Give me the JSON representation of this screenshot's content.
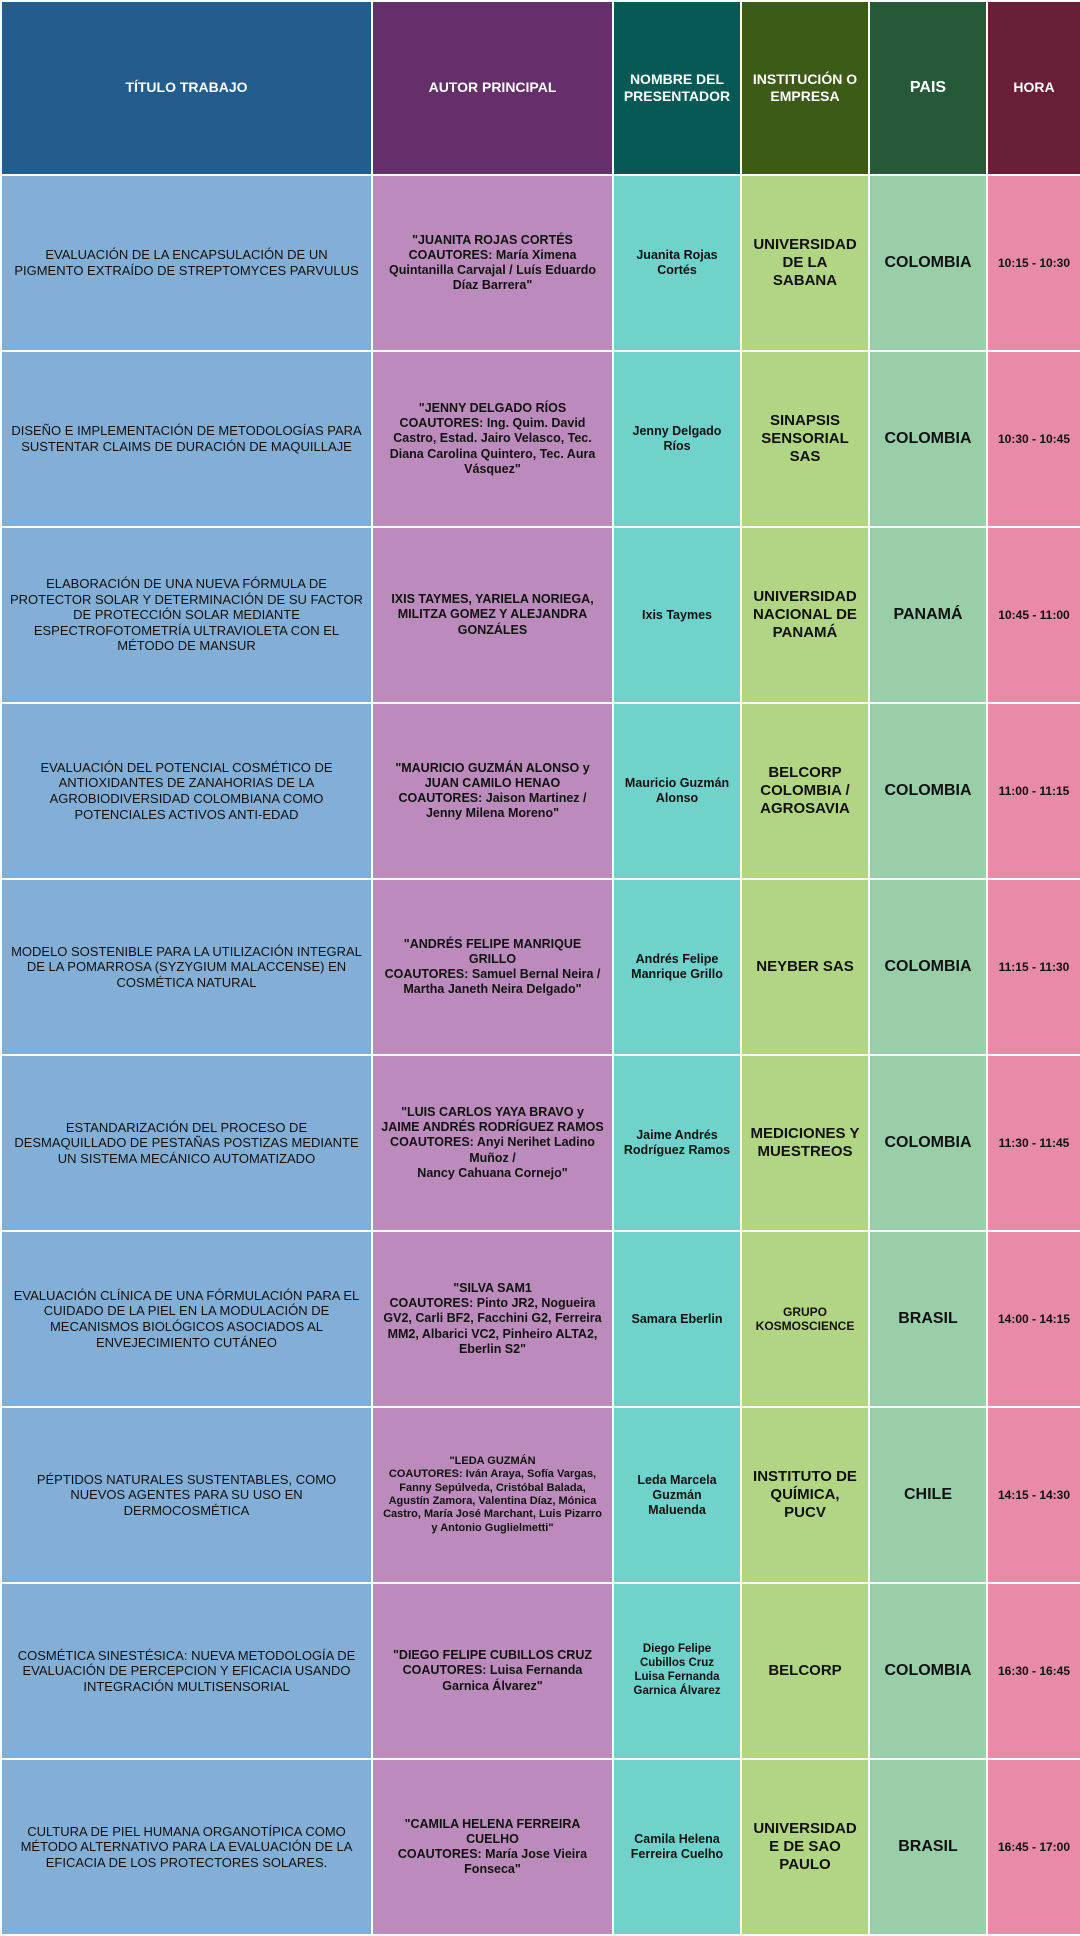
{
  "header": {
    "titulo": "TÍTULO TRABAJO",
    "autor": "AUTOR PRINCIPAL",
    "presentador": "NOMBRE DEL PRESENTADOR",
    "institucion": "INSTITUCIÓN O EMPRESA",
    "pais": "PAIS",
    "hora": "HORA"
  },
  "colors": {
    "header_titulo": "#235c8e",
    "header_autor": "#652f6a",
    "header_presentador": "#065954",
    "header_institucion": "#3d5a16",
    "header_pais": "#255938",
    "header_hora": "#6a1f38",
    "col_titulo": "#83aed6",
    "col_autor": "#bb8cbb",
    "col_presentador": "#6fd2cb",
    "col_institucion": "#b1d582",
    "col_pais": "#98cfa8",
    "col_hora": "#e98aa7"
  },
  "rows": [
    {
      "titulo": "EVALUACIÓN DE LA ENCAPSULACIÓN DE UN PIGMENTO EXTRAÍDO DE STREPTOMYCES PARVULUS",
      "autor": "\"JUANITA ROJAS CORTÉS\nCOAUTORES: María Ximena Quintanilla Carvajal /  Luís Eduardo Díaz Barrera\"",
      "presentador": "Juanita Rojas Cortés",
      "institucion": "UNIVERSIDAD DE LA SABANA",
      "pais": "COLOMBIA",
      "hora": "10:15 - 10:30"
    },
    {
      "titulo": "DISEÑO E IMPLEMENTACIÓN DE METODOLOGÍAS PARA SUSTENTAR CLAIMS DE DURACIÓN DE MAQUILLAJE",
      "autor": "\"JENNY DELGADO RÍOS\nCOAUTORES: Ing. Quim. David Castro, Estad. Jairo Velasco, Tec. Diana Carolina Quintero, Tec. Aura Vásquez\"",
      "presentador": "Jenny Delgado Ríos",
      "institucion": "SINAPSIS SENSORIAL SAS",
      "pais": "COLOMBIA",
      "hora": "10:30 - 10:45"
    },
    {
      "titulo": "ELABORACIÓN DE UNA NUEVA FÓRMULA DE PROTECTOR SOLAR Y DETERMINACIÓN DE SU FACTOR DE PROTECCIÓN SOLAR MEDIANTE ESPECTROFOTOMETRÍA ULTRAVIOLETA CON EL MÉTODO DE MANSUR",
      "autor": "IXIS TAYMES, YARIELA NORIEGA, MILITZA GOMEZ Y ALEJANDRA GONZÁLES",
      "presentador": "Ixis Taymes",
      "institucion": "UNIVERSIDAD NACIONAL DE PANAMÁ",
      "pais": "PANAMÁ",
      "hora": "10:45 - 11:00"
    },
    {
      "titulo": "EVALUACIÓN DEL POTENCIAL COSMÉTICO DE ANTIOXIDANTES DE ZANAHORIAS DE LA AGROBIODIVERSIDAD COLOMBIANA COMO POTENCIALES ACTIVOS ANTI-EDAD",
      "autor": "\"MAURICIO GUZMÁN ALONSO y JUAN CAMILO HENAO\nCOAUTORES: Jaison Martinez / Jenny Milena Moreno\"",
      "presentador": "Mauricio Guzmán Alonso",
      "institucion": "BELCORP COLOMBIA / AGROSAVIA",
      "pais": "COLOMBIA",
      "hora": "11:00 - 11:15"
    },
    {
      "titulo": "MODELO SOSTENIBLE PARA LA UTILIZACIÓN INTEGRAL DE LA POMARROSA (SYZYGIUM MALACCENSE) EN COSMÉTICA NATURAL",
      "autor": "\"ANDRÉS FELIPE MANRIQUE GRILLO\nCOAUTORES: Samuel Bernal Neira / Martha Janeth Neira Delgado\"",
      "presentador": "Andrés Felipe Manrique Grillo",
      "institucion": "NEYBER SAS",
      "pais": "COLOMBIA",
      "hora": "11:15 - 11:30"
    },
    {
      "titulo": "ESTANDARIZACIÓN DEL PROCESO DE DESMAQUILLADO DE PESTAÑAS POSTIZAS MEDIANTE UN SISTEMA MECÁNICO AUTOMATIZADO",
      "autor": "\"LUIS CARLOS YAYA BRAVO y JAIME ANDRÉS RODRÍGUEZ RAMOS\nCOAUTORES: Anyi Nerihet Ladino Muñoz /\nNancy Cahuana Cornejo\"",
      "presentador": "Jaime Andrés Rodríguez Ramos",
      "institucion": "MEDICIONES Y MUESTREOS",
      "pais": "COLOMBIA",
      "hora": "11:30 - 11:45"
    },
    {
      "titulo": "EVALUACIÓN CLÍNICA DE UNA FÓRMULACIÓN PARA EL CUIDADO DE LA PIEL EN LA MODULACIÓN DE MECANISMOS BIOLÓGICOS ASOCIADOS AL ENVEJECIMIENTO CUTÁNEO",
      "autor": "\"SILVA SAM1\nCOAUTORES: Pinto JR2, Nogueira GV2, Carli BF2, Facchini G2, Ferreira MM2, Albarici VC2, Pinheiro ALTA2, Eberlin S2\"",
      "presentador": "Samara Eberlin",
      "institucion": "GRUPO KOSMOSCIENCE",
      "pais": "BRASIL",
      "hora": "14:00 - 14:15"
    },
    {
      "titulo": "PÉPTIDOS NATURALES SUSTENTABLES, COMO NUEVOS AGENTES PARA SU USO EN DERMOCOSMÉTICA",
      "autor": "\"LEDA GUZMÁN\nCOAUTORES: Iván Araya, Sofía Vargas, Fanny Sepúlveda, Cristóbal Balada, Agustín Zamora, Valentina Díaz, Mónica Castro, María José Marchant, Luis Pizarro y Antonio Guglielmetti\"",
      "presentador": "Leda Marcela Guzmán Maluenda",
      "institucion": "INSTITUTO DE QUÍMICA, PUCV",
      "pais": "CHILE",
      "hora": "14:15 - 14:30"
    },
    {
      "titulo": "COSMÉTICA SINESTÉSICA: NUEVA METODOLOGÍA DE EVALUACIÓN DE PERCEPCION Y EFICACIA USANDO INTEGRACIÓN MULTISENSORIAL",
      "autor": "\"DIEGO FELIPE CUBILLOS CRUZ\nCOAUTORES: Luisa Fernanda Garnica Álvarez\"",
      "presentador": "Diego Felipe Cubillos Cruz\nLuisa Fernanda Garnica Álvarez",
      "institucion": "BELCORP",
      "pais": "COLOMBIA",
      "hora": "16:30 - 16:45"
    },
    {
      "titulo": "CULTURA DE PIEL HUMANA ORGANOTÍPICA COMO MÉTODO ALTERNATIVO PARA LA EVALUACIÓN DE LA EFICACIA DE LOS PROTECTORES SOLARES.",
      "autor": "\"CAMILA HELENA FERREIRA CUELHO\nCOAUTORES: María Jose Vieira Fonseca\"",
      "presentador": "Camila Helena Ferreira Cuelho",
      "institucion": "UNIVERSIDADE DE SAO PAULO",
      "pais": "BRASIL",
      "hora": "16:45 - 17:00"
    }
  ]
}
